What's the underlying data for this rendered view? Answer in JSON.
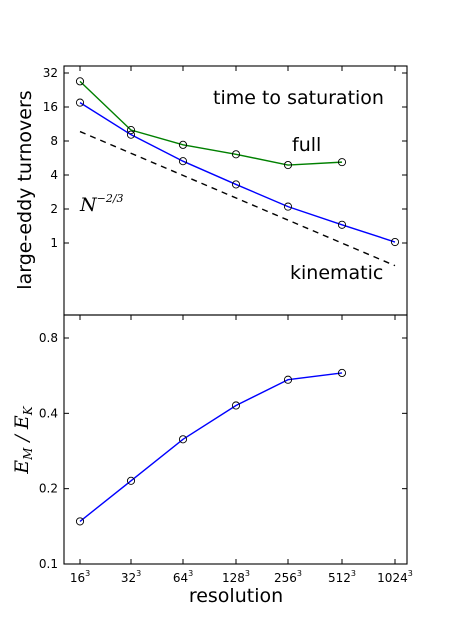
{
  "chart_data": [
    {
      "type": "line",
      "panel": "top",
      "yscale": "log2",
      "ylabel": "large-eddy turnovers",
      "yticks": [
        "1",
        "2",
        "4",
        "8",
        "16",
        "32"
      ],
      "ylim": [
        0.5,
        40
      ],
      "x_categories": [
        "16",
        "32",
        "64",
        "128",
        "256",
        "512",
        "1024"
      ],
      "series": [
        {
          "name": "full",
          "color": "#008000",
          "values": [
            27,
            10,
            7.4,
            6.1,
            4.9,
            5.2,
            null
          ]
        },
        {
          "name": "",
          "color": "#0000ff",
          "values": [
            17.5,
            9.1,
            5.3,
            3.3,
            2.1,
            1.45,
            1.02
          ]
        },
        {
          "name": "kinematic",
          "color": "#000000",
          "style": "dashed",
          "values": [
            9.7,
            null,
            null,
            null,
            null,
            null,
            0.63
          ]
        }
      ],
      "annotations": {
        "title_text": "time to saturation",
        "full_label": "full",
        "kinematic_label": "kinematic",
        "scaling_base": "N",
        "scaling_exp": "−2/3"
      }
    },
    {
      "type": "line",
      "panel": "bottom",
      "yscale": "log",
      "ylabel_base": "E",
      "ylabel_num_sub": "M",
      "ylabel_den_sub": "K",
      "yticks": [
        "0.1",
        "0.2",
        "0.4",
        "0.8"
      ],
      "ylim": [
        0.1,
        1.0
      ],
      "xlabel": "resolution",
      "x_base": "10",
      "x_categories": [
        "16",
        "32",
        "64",
        "128",
        "256",
        "512",
        "1024"
      ],
      "series": [
        {
          "name": "",
          "color": "#0000ff",
          "values": [
            0.148,
            0.215,
            0.315,
            0.43,
            0.545,
            0.58,
            null
          ]
        }
      ]
    }
  ],
  "tick_base_exp": "3"
}
